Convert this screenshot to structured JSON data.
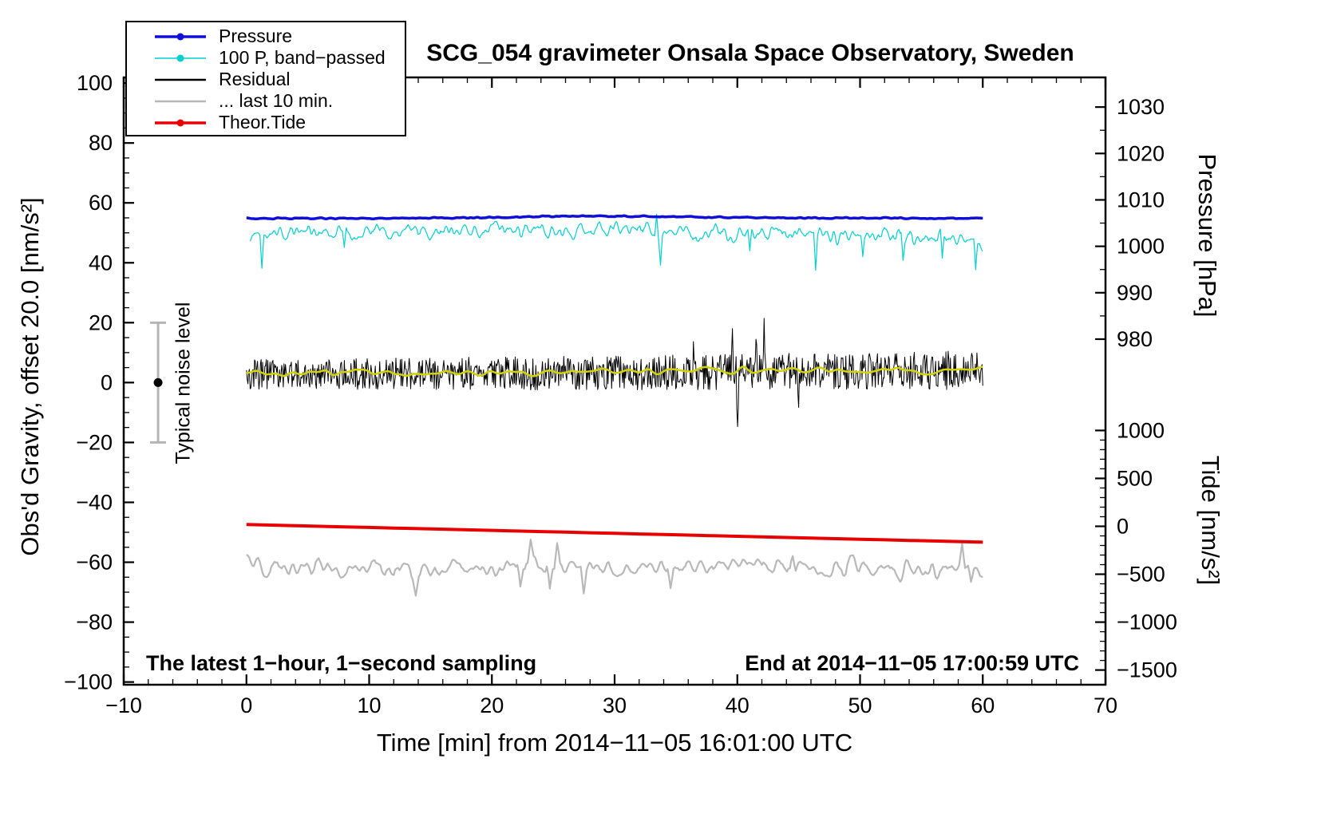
{
  "chart_data": {
    "type": "line",
    "title": "SCG_054 gravimeter Onsala Space Observatory, Sweden",
    "xlabel": "Time [min] from 2014−11−05 16:01:00 UTC",
    "ylabel_left": "Obs'd Gravity, offset 20.0 [nm/s²]",
    "ylabel_pressure": "Pressure [hPa]",
    "ylabel_tide": "Tide [nm/s²]",
    "annotation_left": "The latest 1−hour, 1−second sampling",
    "annotation_right": "End at 2014−11−05 17:00:59 UTC",
    "xlim": [
      -10,
      70
    ],
    "ylim": [
      -100,
      100
    ],
    "grid": false,
    "legend_position": "top-left",
    "x_ticks": [
      {
        "v": -10,
        "label": "−10"
      },
      {
        "v": 0,
        "label": "0"
      },
      {
        "v": 10,
        "label": "10"
      },
      {
        "v": 20,
        "label": "20"
      },
      {
        "v": 30,
        "label": "30"
      },
      {
        "v": 40,
        "label": "40"
      },
      {
        "v": 50,
        "label": "50"
      },
      {
        "v": 60,
        "label": "60"
      },
      {
        "v": 70,
        "label": "70"
      }
    ],
    "x_minor_step": 2,
    "y_ticks_left": [
      {
        "v": 100,
        "label": "100"
      },
      {
        "v": 80,
        "label": "80"
      },
      {
        "v": 60,
        "label": "60"
      },
      {
        "v": 40,
        "label": "40"
      },
      {
        "v": 20,
        "label": "20"
      },
      {
        "v": 0,
        "label": "0"
      },
      {
        "v": -20,
        "label": "−20"
      },
      {
        "v": -40,
        "label": "−40"
      },
      {
        "v": -60,
        "label": "−60"
      },
      {
        "v": -80,
        "label": "−80"
      },
      {
        "v": -100,
        "label": "−100"
      }
    ],
    "y_minor_step": 5,
    "pressure_ticks": [
      {
        "label": "1030",
        "v": 92.0
      },
      {
        "label": "1020",
        "v": 76.5
      },
      {
        "label": "1010",
        "v": 61.0
      },
      {
        "label": "1000",
        "v": 45.5
      },
      {
        "label": "990",
        "v": 30.0
      },
      {
        "label": "980",
        "v": 14.5
      }
    ],
    "pressure_minor_divisions": 2,
    "tide_ticks": [
      {
        "label": "1000",
        "v": -16
      },
      {
        "label": "500",
        "v": -32
      },
      {
        "label": "0",
        "v": -48
      },
      {
        "label": "−500",
        "v": -64
      },
      {
        "label": "−1000",
        "v": -80
      },
      {
        "label": "−1500",
        "v": -96
      }
    ],
    "tide_minor_divisions": 5,
    "legend": [
      {
        "label": "Pressure",
        "color": "#0f0fd7",
        "width": 3.5,
        "marker": true
      },
      {
        "label": "100 P, band−passed",
        "color": "#00d0d0",
        "width": 1.6,
        "marker": true
      },
      {
        "label": "Residual",
        "color": "#000000",
        "width": 2.6,
        "marker": false
      },
      {
        "label": "... last 10 min.",
        "color": "#b8b8b8",
        "width": 2.6,
        "marker": false
      },
      {
        "label": "Theor.Tide",
        "color": "#e80000",
        "width": 3.5,
        "marker": true
      }
    ],
    "noise_marker": {
      "x": -7.2,
      "center": 0,
      "half_range": 20,
      "label": "Typical noise level",
      "bar_color": "#b4b4b4",
      "dot_color": "#000000"
    },
    "series": [
      {
        "name": "100 P, band−passed",
        "color": "#00d0d0",
        "width": 1.2,
        "seed": 22,
        "x0": 0.3,
        "x1": 60,
        "step": 0.08,
        "noise": 4.5,
        "smooth": 2,
        "control": [
          [
            0,
            49.8
          ],
          [
            12,
            50.1
          ],
          [
            22,
            50.4
          ],
          [
            30,
            50.8
          ],
          [
            36,
            50.2
          ],
          [
            42,
            49.4
          ],
          [
            48,
            48.8
          ],
          [
            54,
            48.3
          ],
          [
            60,
            48.2
          ]
        ],
        "spikes": [
          [
            1.3,
            -10
          ],
          [
            8,
            -7
          ],
          [
            33.4,
            7
          ],
          [
            33.7,
            -8
          ],
          [
            41,
            -7
          ],
          [
            46.4,
            -11
          ],
          [
            50.2,
            -7
          ],
          [
            53.5,
            -8
          ],
          [
            56.7,
            -9
          ],
          [
            59.4,
            -10
          ]
        ]
      },
      {
        "name": "Pressure",
        "color": "#0f0fd7",
        "width": 3.5,
        "seed": 11,
        "x0": 0,
        "x1": 60,
        "step": 0.1,
        "noise": 0.35,
        "smooth": 2,
        "control": [
          [
            0,
            54.8
          ],
          [
            10,
            54.85
          ],
          [
            18,
            55.0
          ],
          [
            24,
            55.45
          ],
          [
            30,
            55.6
          ],
          [
            36,
            55.3
          ],
          [
            42,
            55.05
          ],
          [
            50,
            54.9
          ],
          [
            60,
            54.9
          ]
        ],
        "spikes": []
      },
      {
        "name": "Residual",
        "color": "#000000",
        "width": 1,
        "seed": 33,
        "x0": 0,
        "x1": 60,
        "step": 0.06,
        "noise": 5.0,
        "noise_end": 6.5,
        "smooth": 0,
        "control": [
          [
            0,
            2.8
          ],
          [
            30,
            3.2
          ],
          [
            60,
            4.2
          ]
        ],
        "spikes": [
          [
            36.5,
            10
          ],
          [
            39.6,
            12
          ],
          [
            40.0,
            -16
          ],
          [
            41.5,
            14
          ],
          [
            42.2,
            15
          ],
          [
            45.0,
            -8
          ]
        ]
      },
      {
        "name": "Residual smoothed",
        "color": "#d2d200",
        "width": 2.5,
        "seed": 44,
        "x0": 0,
        "x1": 60,
        "step": 0.2,
        "noise": 2.2,
        "smooth": 3,
        "control": [
          [
            0,
            3.0
          ],
          [
            15,
            3.2
          ],
          [
            30,
            3.6
          ],
          [
            42,
            4.4
          ],
          [
            50,
            4.1
          ],
          [
            60,
            4.6
          ]
        ],
        "spikes": []
      },
      {
        "name": "... last 10 min.",
        "color": "#b8b8b8",
        "width": 2.2,
        "seed": 66,
        "x0": 0,
        "x1": 60,
        "step": 0.12,
        "noise": 5.5,
        "smooth": 2,
        "control": [
          [
            0,
            -62
          ],
          [
            20,
            -62
          ],
          [
            40,
            -62
          ],
          [
            60,
            -62.3
          ]
        ],
        "spikes": [
          [
            13.8,
            -6
          ],
          [
            22.3,
            -8
          ],
          [
            23.2,
            7
          ],
          [
            24.7,
            -9
          ],
          [
            25.3,
            6
          ],
          [
            27.5,
            -7
          ],
          [
            34.6,
            -6
          ],
          [
            44.5,
            5
          ],
          [
            58.3,
            7
          ],
          [
            59.0,
            -5
          ]
        ]
      },
      {
        "name": "Theor.Tide",
        "color": "#e80000",
        "width": 4,
        "seed": 55,
        "x0": 0,
        "x1": 60,
        "step": 2,
        "noise": 0,
        "smooth": 0,
        "control": [
          [
            0,
            -47.4
          ],
          [
            60,
            -53.3
          ]
        ],
        "spikes": []
      }
    ]
  }
}
